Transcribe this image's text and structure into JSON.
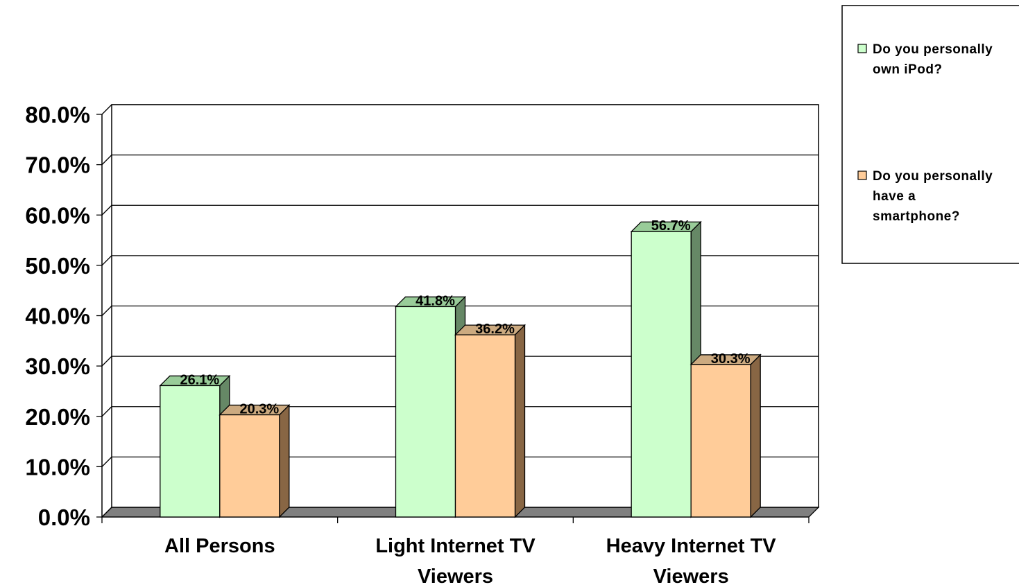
{
  "chart_data": {
    "type": "bar",
    "title": "",
    "xlabel": "",
    "ylabel": "",
    "categories": [
      [
        "All Persons"
      ],
      [
        "Light Internet TV",
        "Viewers"
      ],
      [
        "Heavy Internet TV",
        "Viewers"
      ]
    ],
    "series": [
      {
        "name": [
          "Do you personally",
          "own iPod?"
        ],
        "values": [
          26.1,
          41.8,
          56.7
        ],
        "labels": [
          "26.1%",
          "41.8%",
          "56.7%"
        ],
        "color_front": "#ccffcc",
        "color_top": "#99cc99",
        "color_side": "#668866"
      },
      {
        "name": [
          "Do you personally",
          "have a",
          "smartphone?"
        ],
        "values": [
          20.3,
          36.2,
          30.3
        ],
        "labels": [
          "20.3%",
          "36.2%",
          "30.3%"
        ],
        "color_front": "#ffcc99",
        "color_top": "#ccaa80",
        "color_side": "#886644"
      }
    ],
    "yticks": [
      "0.0%",
      "10.0%",
      "20.0%",
      "30.0%",
      "40.0%",
      "50.0%",
      "60.0%",
      "70.0%",
      "80.0%"
    ],
    "ylim": [
      0,
      80
    ],
    "grid": true,
    "legend_position": "top-right",
    "style": "3d-clustered-column",
    "floor_color": "#808080"
  }
}
